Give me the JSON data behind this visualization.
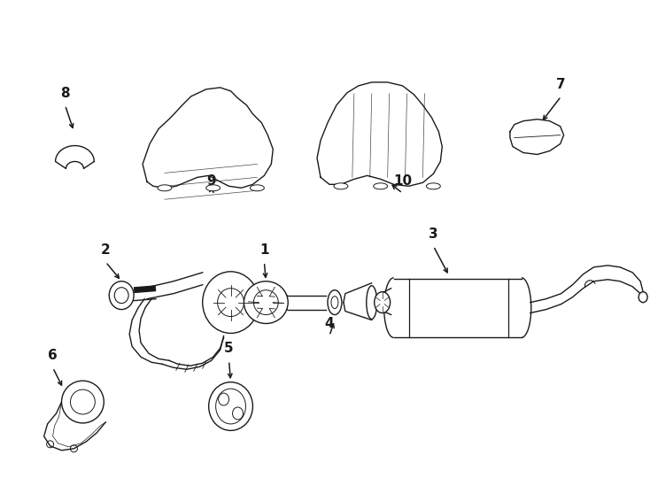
{
  "bg_color": "#ffffff",
  "line_color": "#1a1a1a",
  "lw": 1.0,
  "figsize": [
    7.34,
    5.4
  ],
  "dpi": 100,
  "xlim": [
    0,
    734
  ],
  "ylim": [
    0,
    540
  ]
}
